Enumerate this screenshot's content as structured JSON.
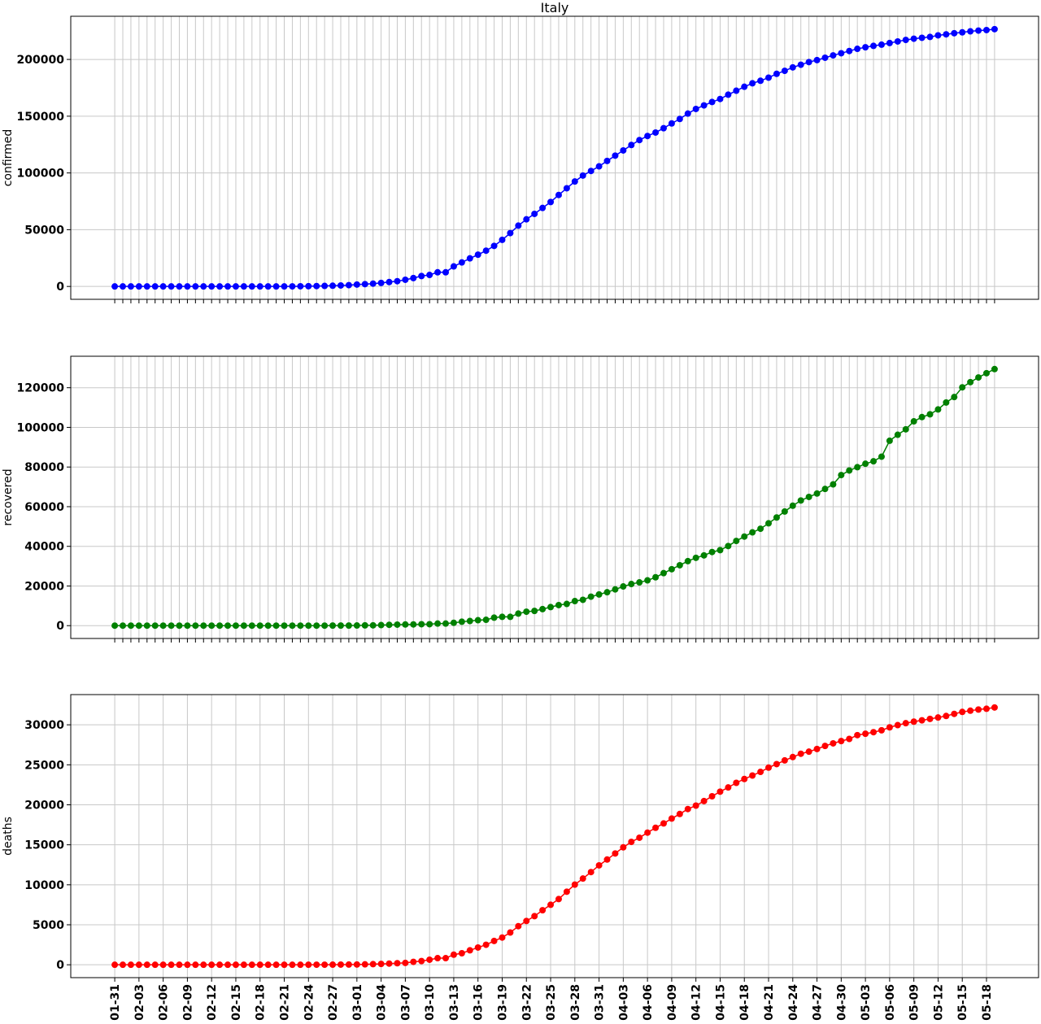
{
  "chart_data": [
    {
      "type": "line",
      "title": "Italy",
      "ylabel": "confirmed",
      "color": "#0000ff",
      "values": [
        2,
        2,
        2,
        2,
        2,
        2,
        2,
        3,
        3,
        3,
        3,
        3,
        3,
        3,
        3,
        3,
        3,
        3,
        3,
        3,
        3,
        20,
        62,
        155,
        229,
        322,
        453,
        655,
        888,
        1128,
        1694,
        2036,
        2502,
        3089,
        3858,
        4636,
        5883,
        7375,
        9172,
        10149,
        12462,
        12462,
        17660,
        21157,
        24747,
        27980,
        31506,
        35713,
        41035,
        47021,
        53578,
        59138,
        63927,
        69176,
        74386,
        80589,
        86498,
        92472,
        97689,
        101739,
        105792,
        110574,
        115242,
        119827,
        124632,
        128948,
        132547,
        135586,
        139422,
        143626,
        147577,
        152271,
        156363,
        159516,
        162488,
        165155,
        168941,
        172434,
        175925,
        178972,
        181228,
        183957,
        187327,
        189973,
        192994,
        195351,
        197675,
        199414,
        201505,
        203591,
        205463,
        207428,
        209328,
        210717,
        211938,
        213013,
        214457,
        215858,
        217185,
        218268,
        219070,
        219814,
        221216,
        222104,
        223096,
        223885,
        224760,
        225435,
        225886,
        226699
      ],
      "ylim": [
        -11335,
        238034
      ],
      "yticks": [
        0,
        50000,
        100000,
        150000,
        200000
      ],
      "grid": true
    },
    {
      "type": "line",
      "ylabel": "recovered",
      "color": "#008000",
      "values": [
        0,
        0,
        0,
        0,
        0,
        0,
        0,
        0,
        0,
        0,
        0,
        0,
        0,
        0,
        0,
        0,
        0,
        0,
        0,
        0,
        0,
        0,
        0,
        0,
        1,
        1,
        3,
        45,
        46,
        46,
        83,
        149,
        160,
        276,
        414,
        523,
        589,
        622,
        724,
        724,
        1045,
        1045,
        1439,
        1966,
        2335,
        2749,
        2941,
        4025,
        4440,
        4440,
        6072,
        7024,
        7432,
        8326,
        9362,
        10361,
        10950,
        12384,
        13030,
        14620,
        15729,
        16847,
        18278,
        19758,
        20996,
        21815,
        22837,
        24392,
        26491,
        28470,
        30455,
        32534,
        34211,
        35435,
        37130,
        38092,
        40164,
        42727,
        44927,
        47055,
        48877,
        51600,
        54543,
        57576,
        60498,
        63120,
        64928,
        66624,
        68941,
        71252,
        75945,
        78249,
        79914,
        81654,
        82879,
        85231,
        93245,
        96276,
        99023,
        103031,
        105186,
        106587,
        109039,
        112541,
        115288,
        120205,
        122810,
        125176,
        127326,
        129401
      ],
      "ylim": [
        -6470,
        135871
      ],
      "yticks": [
        0,
        20000,
        40000,
        60000,
        80000,
        100000,
        120000
      ],
      "grid": true
    },
    {
      "type": "line",
      "ylabel": "deaths",
      "color": "#ff0000",
      "categories": [
        "01-31",
        null,
        null,
        "02-03",
        null,
        null,
        "02-06",
        null,
        null,
        "02-09",
        null,
        null,
        "02-12",
        null,
        null,
        "02-15",
        null,
        null,
        "02-18",
        null,
        null,
        "02-21",
        null,
        null,
        "02-24",
        null,
        null,
        "02-27",
        null,
        null,
        "03-01",
        null,
        null,
        "03-04",
        null,
        null,
        "03-07",
        null,
        null,
        "03-10",
        null,
        null,
        "03-13",
        null,
        null,
        "03-16",
        null,
        null,
        "03-19",
        null,
        null,
        "03-22",
        null,
        null,
        "03-25",
        null,
        null,
        "03-28",
        null,
        null,
        "03-31",
        null,
        null,
        "04-03",
        null,
        null,
        "04-06",
        null,
        null,
        "04-09",
        null,
        null,
        "04-12",
        null,
        null,
        "04-15",
        null,
        null,
        "04-18",
        null,
        null,
        "04-21",
        null,
        null,
        "04-24",
        null,
        null,
        "04-27",
        null,
        null,
        "04-30",
        null,
        null,
        "05-03",
        null,
        null,
        "05-06",
        null,
        null,
        "05-09",
        null,
        null,
        "05-12",
        null,
        null,
        "05-15",
        null,
        null,
        "05-18",
        null
      ],
      "values": [
        0,
        0,
        0,
        0,
        0,
        0,
        0,
        0,
        0,
        0,
        0,
        0,
        0,
        0,
        0,
        0,
        0,
        0,
        0,
        0,
        0,
        1,
        2,
        3,
        7,
        10,
        12,
        17,
        21,
        29,
        34,
        52,
        79,
        107,
        148,
        197,
        233,
        366,
        463,
        631,
        827,
        827,
        1266,
        1441,
        1809,
        2158,
        2503,
        2978,
        3405,
        4032,
        4825,
        5476,
        6077,
        6820,
        7503,
        8215,
        9134,
        10023,
        10779,
        11591,
        12428,
        13155,
        13915,
        14681,
        15362,
        15887,
        16523,
        17127,
        17669,
        18279,
        18849,
        19468,
        19899,
        20465,
        21067,
        21645,
        22170,
        22745,
        23227,
        23660,
        24114,
        24648,
        25085,
        25549,
        25969,
        26384,
        26644,
        26977,
        27359,
        27682,
        27967,
        28236,
        28710,
        28884,
        29079,
        29315,
        29684,
        29958,
        30201,
        30395,
        30560,
        30739,
        30911,
        31106,
        31368,
        31610,
        31763,
        31908,
        32007,
        32169
      ],
      "ylim": [
        -1608,
        33777
      ],
      "yticks": [
        0,
        5000,
        10000,
        15000,
        20000,
        25000,
        30000
      ],
      "grid": true
    }
  ]
}
